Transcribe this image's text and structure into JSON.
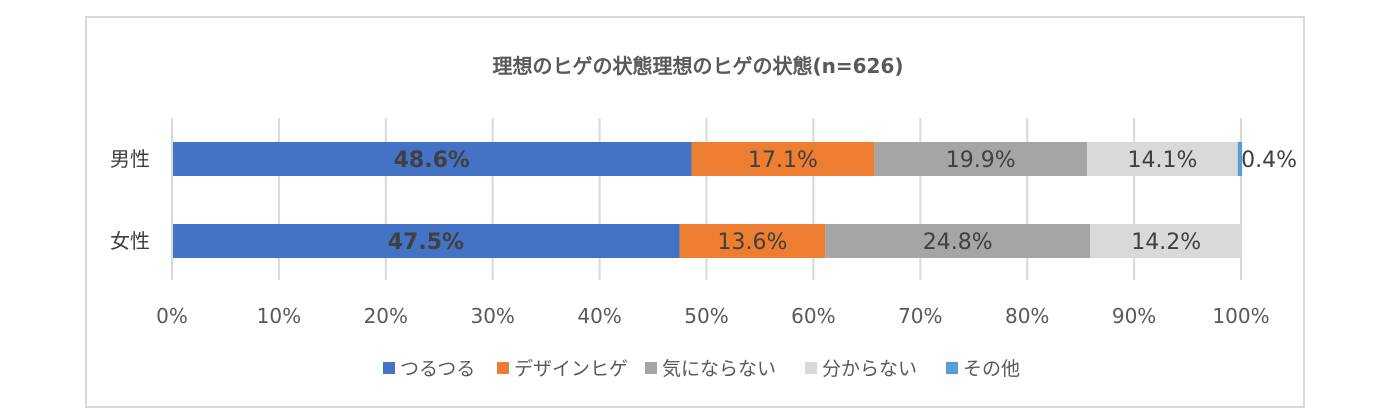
{
  "chart_data": {
    "type": "bar",
    "orientation": "horizontal",
    "stacked": "percent",
    "title": "理想のヒゲの状態理想のヒゲの状態(n=626)",
    "categories": [
      "男性",
      "女性"
    ],
    "series": [
      {
        "name": "つるつる",
        "color": "#4472c4",
        "values": [
          48.6,
          47.5
        ],
        "labels": [
          "48.6%",
          "47.5%"
        ],
        "label_bold": true
      },
      {
        "name": "デザインヒゲ",
        "color": "#ed7d31",
        "values": [
          17.1,
          13.6
        ],
        "labels": [
          "17.1%",
          "13.6%"
        ],
        "label_bold": false
      },
      {
        "name": "気にならない",
        "color": "#a5a5a5",
        "values": [
          19.9,
          24.8
        ],
        "labels": [
          "19.9%",
          "24.8%"
        ],
        "label_bold": false
      },
      {
        "name": "分からない",
        "color": "#d9d9d9",
        "values": [
          14.1,
          14.2
        ],
        "labels": [
          "14.1%",
          "14.2%"
        ],
        "label_bold": false
      },
      {
        "name": "その他",
        "color": "#5b9bd5",
        "values": [
          0.4,
          0
        ],
        "labels": [
          "0.4%",
          ""
        ],
        "label_bold": false
      }
    ],
    "xlim": [
      0,
      100
    ],
    "xticks": [
      "0%",
      "10%",
      "20%",
      "30%",
      "40%",
      "50%",
      "60%",
      "70%",
      "80%",
      "90%",
      "100%"
    ],
    "grid": "vertical",
    "legend": "bottom"
  }
}
